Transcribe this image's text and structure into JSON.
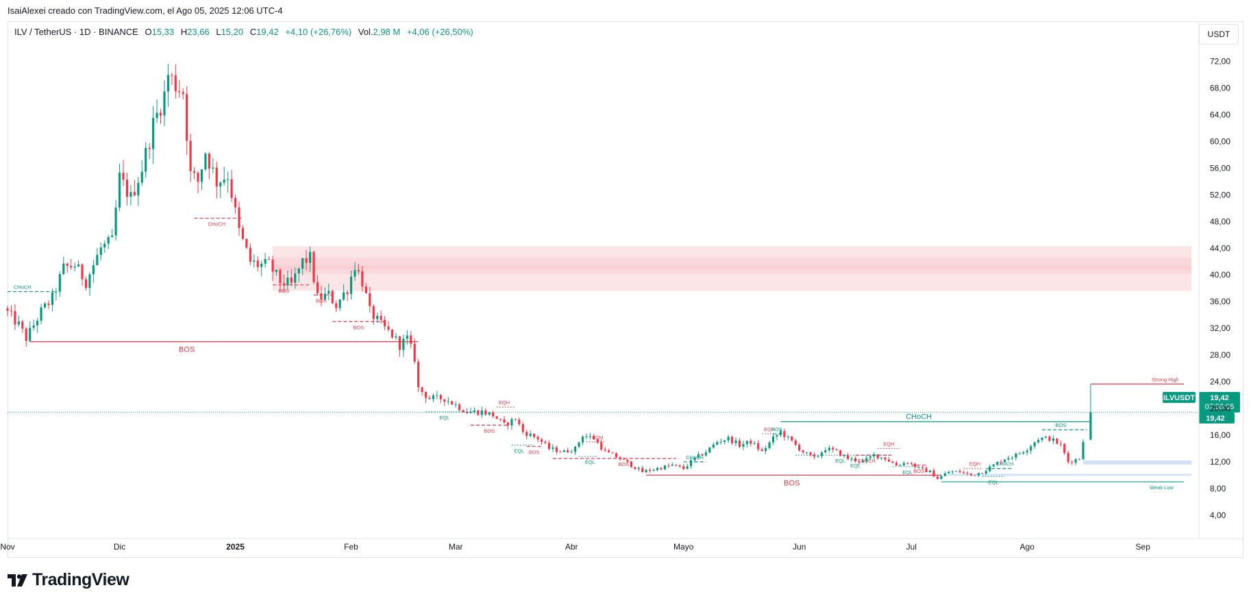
{
  "header": {
    "credit": "IsaiAlexei creado con TradingView.com, el Ago 05, 2025 12:06 UTC-4",
    "currency_button": "USDT"
  },
  "legend": {
    "symbol": "ILV / TetherUS · 1D · BINANCE",
    "o_label": "O",
    "o_value": "15,33",
    "h_label": "H",
    "h_value": "23,66",
    "l_label": "L",
    "l_value": "15,20",
    "c_label": "C",
    "c_value": "19,42",
    "change": "+4,10 (+26,76%)",
    "vol_label": "Vol.",
    "vol_value": "2,98 M",
    "vol_change": "+4,06 (+26,50%)"
  },
  "colors": {
    "up": "#089981",
    "down": "#f23645",
    "zone": "#f7c5c9",
    "demand": "#c9dcf7",
    "axis_text": "#131722",
    "grid_border": "#e0e3eb"
  },
  "footer": {
    "brand": "TradingView",
    "logo_icon": "tradingview-logo-icon"
  },
  "chart_data": {
    "type": "candlestick",
    "symbol": "ILVUSDT",
    "y_ticks": [
      "72,00",
      "68,00",
      "64,00",
      "60,00",
      "56,00",
      "52,00",
      "48,00",
      "44,00",
      "40,00",
      "36,00",
      "32,00",
      "28,00",
      "24,00",
      "20,00",
      "16,00",
      "12,00",
      "8,00",
      "4,00"
    ],
    "y_tick_values": [
      72,
      68,
      64,
      60,
      56,
      52,
      48,
      44,
      40,
      36,
      32,
      28,
      24,
      20,
      16,
      12,
      8,
      4
    ],
    "ylim": [
      0.5,
      77.8
    ],
    "x_ticks": [
      "Nov",
      "Dic",
      "2025",
      "Feb",
      "Mar",
      "Abr",
      "Mayo",
      "Jun",
      "Jul",
      "Ago",
      "Sep"
    ],
    "x_tick_dates": [
      "2024-11-01",
      "2024-12-01",
      "2025-01-01",
      "2025-02-01",
      "2025-03-01",
      "2025-04-01",
      "2025-05-01",
      "2025-06-01",
      "2025-07-01",
      "2025-08-01",
      "2025-09-01"
    ],
    "xlim": [
      "2024-11-01",
      "2025-09-16"
    ],
    "last_price": {
      "label": "ILVUSDT",
      "value": "19,42",
      "countdown": "07:53:05",
      "price": 19.42
    },
    "price_line_value": 19.42,
    "annotations": [
      {
        "text": "CHoCH",
        "color": "#089981"
      },
      {
        "text": "CHoCH",
        "color": "#f23645"
      },
      {
        "text": "BOS",
        "color": "#f23645"
      },
      {
        "text": "EQH",
        "color": "#f23645"
      },
      {
        "text": "EQL",
        "color": "#089981"
      },
      {
        "text": "Strong High",
        "color": "#f23645"
      },
      {
        "text": "Weak Low",
        "color": "#089981"
      }
    ],
    "waypoints": [
      [
        "2024-11-01",
        35.0
      ],
      [
        "2024-11-05",
        32.5
      ],
      [
        "2024-11-07",
        30.5
      ],
      [
        "2024-11-11",
        34.5
      ],
      [
        "2024-11-14",
        36.5
      ],
      [
        "2024-11-17",
        41.0
      ],
      [
        "2024-11-20",
        41.5
      ],
      [
        "2024-11-23",
        39.0
      ],
      [
        "2024-11-27",
        44.0
      ],
      [
        "2024-11-30",
        45.0
      ],
      [
        "2024-12-02",
        54.5
      ],
      [
        "2024-12-05",
        51.5
      ],
      [
        "2024-12-08",
        56.0
      ],
      [
        "2024-12-11",
        62.5
      ],
      [
        "2024-12-14",
        67.0
      ],
      [
        "2024-12-15",
        70.0
      ],
      [
        "2024-12-17",
        68.5
      ],
      [
        "2024-12-19",
        67.5
      ],
      [
        "2024-12-21",
        55.0
      ],
      [
        "2024-12-23",
        54.0
      ],
      [
        "2024-12-25",
        58.5
      ],
      [
        "2024-12-28",
        54.0
      ],
      [
        "2024-12-31",
        55.0
      ],
      [
        "2025-01-03",
        46.5
      ],
      [
        "2025-01-06",
        42.0
      ],
      [
        "2025-01-08",
        41.5
      ],
      [
        "2025-01-11",
        41.5
      ],
      [
        "2025-01-14",
        39.0
      ],
      [
        "2025-01-17",
        38.5
      ],
      [
        "2025-01-20",
        42.0
      ],
      [
        "2025-01-22",
        42.5
      ],
      [
        "2025-01-24",
        36.5
      ],
      [
        "2025-01-27",
        37.0
      ],
      [
        "2025-01-29",
        35.5
      ],
      [
        "2025-02-01",
        38.0
      ],
      [
        "2025-02-03",
        41.5
      ],
      [
        "2025-02-05",
        39.0
      ],
      [
        "2025-02-07",
        34.5
      ],
      [
        "2025-02-10",
        32.5
      ],
      [
        "2025-02-13",
        31.0
      ],
      [
        "2025-02-15",
        29.5
      ],
      [
        "2025-02-17",
        30.5
      ],
      [
        "2025-02-19",
        27.5
      ],
      [
        "2025-02-20",
        23.0
      ],
      [
        "2025-02-23",
        21.5
      ],
      [
        "2025-02-27",
        21.5
      ],
      [
        "2025-03-02",
        20.5
      ],
      [
        "2025-03-05",
        19.5
      ],
      [
        "2025-03-09",
        19.5
      ],
      [
        "2025-03-12",
        19.0
      ],
      [
        "2025-03-15",
        17.5
      ],
      [
        "2025-03-18",
        18.5
      ],
      [
        "2025-03-20",
        16.5
      ],
      [
        "2025-03-24",
        15.5
      ],
      [
        "2025-03-27",
        14.0
      ],
      [
        "2025-03-31",
        13.5
      ],
      [
        "2025-04-03",
        14.0
      ],
      [
        "2025-04-05",
        16.0
      ],
      [
        "2025-04-08",
        15.5
      ],
      [
        "2025-04-11",
        13.5
      ],
      [
        "2025-04-15",
        12.5
      ],
      [
        "2025-04-18",
        11.5
      ],
      [
        "2025-04-21",
        10.5
      ],
      [
        "2025-04-25",
        11.0
      ],
      [
        "2025-04-29",
        11.5
      ],
      [
        "2025-05-02",
        11.0
      ],
      [
        "2025-05-05",
        12.5
      ],
      [
        "2025-05-08",
        13.5
      ],
      [
        "2025-05-11",
        15.0
      ],
      [
        "2025-05-14",
        15.5
      ],
      [
        "2025-05-17",
        14.5
      ],
      [
        "2025-05-20",
        15.0
      ],
      [
        "2025-05-23",
        13.5
      ],
      [
        "2025-05-26",
        15.5
      ],
      [
        "2025-05-28",
        16.5
      ],
      [
        "2025-05-31",
        15.0
      ],
      [
        "2025-06-03",
        13.5
      ],
      [
        "2025-06-06",
        12.5
      ],
      [
        "2025-06-09",
        14.0
      ],
      [
        "2025-06-12",
        13.5
      ],
      [
        "2025-06-15",
        12.5
      ],
      [
        "2025-06-19",
        12.0
      ],
      [
        "2025-06-22",
        13.0
      ],
      [
        "2025-06-25",
        12.5
      ],
      [
        "2025-06-28",
        11.5
      ],
      [
        "2025-07-01",
        12.0
      ],
      [
        "2025-07-04",
        11.0
      ],
      [
        "2025-07-07",
        10.5
      ],
      [
        "2025-07-09",
        9.5
      ],
      [
        "2025-07-12",
        10.5
      ],
      [
        "2025-07-15",
        10.5
      ],
      [
        "2025-07-18",
        10.0
      ],
      [
        "2025-07-21",
        10.5
      ],
      [
        "2025-07-24",
        11.5
      ],
      [
        "2025-07-27",
        12.5
      ],
      [
        "2025-07-30",
        13.0
      ],
      [
        "2025-08-02",
        14.0
      ],
      [
        "2025-08-05",
        15.5
      ],
      [
        "2025-08-08",
        15.5
      ],
      [
        "2025-08-11",
        14.5
      ],
      [
        "2025-08-13",
        12.0
      ],
      [
        "2025-08-16",
        12.5
      ],
      [
        "2025-08-17",
        15.33
      ]
    ],
    "last_candle": {
      "date": "2025-08-18",
      "open": 15.33,
      "high": 23.66,
      "low": 15.2,
      "close": 19.42
    },
    "zones": [
      {
        "kind": "supply",
        "top": 44.3,
        "bottom": 37.6,
        "start": "2025-01-11",
        "end": "2025-09-14"
      },
      {
        "kind": "supply",
        "top": 42.6,
        "bottom": 40.2,
        "start": "2025-01-11",
        "end": "2025-09-14"
      },
      {
        "kind": "supply",
        "top": 41.4,
        "bottom": 40.8,
        "start": "2025-01-11",
        "end": "2025-09-14"
      },
      {
        "kind": "demand",
        "top": 12.2,
        "bottom": 11.6,
        "start": "2025-08-16",
        "end": "2025-09-14"
      },
      {
        "kind": "demand",
        "top": 10.2,
        "bottom": 9.9,
        "start": "2025-07-10",
        "end": "2025-09-14"
      }
    ],
    "levels": [
      {
        "label": "BOS",
        "color": "#f23645",
        "value": 30.0,
        "start": "2024-11-07",
        "end": "2025-02-19",
        "style": "solid",
        "labelDate": "2024-12-19",
        "labelAbove": false
      },
      {
        "label": "BOS",
        "color": "#f23645",
        "value": 10.0,
        "start": "2025-04-21",
        "end": "2025-07-09",
        "style": "solid",
        "labelDate": "2025-05-30",
        "labelAbove": false
      },
      {
        "label": "CHoCH",
        "color": "#089981",
        "value": 18.0,
        "start": "2025-05-27",
        "end": "2025-08-18",
        "style": "solid",
        "labelDate": "2025-07-03",
        "labelAbove": true
      },
      {
        "label": "Strong High",
        "color": "#f23645",
        "value": 23.66,
        "start": "2025-08-18",
        "end": "2025-09-12",
        "style": "solid",
        "labelDate": "2025-09-07",
        "labelAbove": true
      },
      {
        "label": "Weak Low",
        "color": "#089981",
        "value": 9.0,
        "start": "2025-07-09",
        "end": "2025-09-12",
        "style": "solid",
        "labelDate": "2025-09-06",
        "labelAbove": false
      },
      {
        "label": "CHoCH",
        "color": "#089981",
        "value": 37.5,
        "start": "2024-11-01",
        "end": "2024-11-14",
        "style": "dashed",
        "labelDate": "2024-11-05",
        "labelAbove": true
      },
      {
        "label": "CHoCH",
        "color": "#f23645",
        "value": 48.5,
        "start": "2024-12-21",
        "end": "2025-01-03",
        "style": "dashed",
        "labelDate": "2024-12-27",
        "labelAbove": false
      },
      {
        "label": "BOS",
        "color": "#f23645",
        "value": 38.5,
        "start": "2025-01-11",
        "end": "2025-01-21",
        "style": "dashed",
        "labelDate": "2025-01-14",
        "labelAbove": false
      },
      {
        "label": "BOS",
        "color": "#f23645",
        "value": 37.0,
        "start": "2025-01-22",
        "end": "2025-01-27",
        "style": "dashed",
        "labelDate": "2025-01-24",
        "labelAbove": false
      },
      {
        "label": "BOS",
        "color": "#f23645",
        "value": 33.0,
        "start": "2025-01-27",
        "end": "2025-02-10",
        "style": "dashed",
        "labelDate": "2025-02-03",
        "labelAbove": false
      },
      {
        "label": "EQL",
        "color": "#089981",
        "value": 19.5,
        "start": "2025-02-21",
        "end": "2025-03-06",
        "style": "dotted",
        "labelDate": "2025-02-26",
        "labelAbove": false
      },
      {
        "label": "EQH",
        "color": "#f23645",
        "value": 20.2,
        "start": "2025-03-12",
        "end": "2025-03-17",
        "style": "dotted",
        "labelDate": "2025-03-14",
        "labelAbove": true
      },
      {
        "label": "BOS",
        "color": "#f23645",
        "value": 17.5,
        "start": "2025-03-05",
        "end": "2025-03-15",
        "style": "dashed",
        "labelDate": "2025-03-10",
        "labelAbove": false
      },
      {
        "label": "BOS",
        "color": "#f23645",
        "value": 14.3,
        "start": "2025-03-20",
        "end": "2025-03-24",
        "style": "dashed",
        "labelDate": "2025-03-22",
        "labelAbove": false
      },
      {
        "label": "EQL",
        "color": "#089981",
        "value": 14.5,
        "start": "2025-03-16",
        "end": "2025-03-22",
        "style": "dotted",
        "labelDate": "2025-03-18",
        "labelAbove": false
      },
      {
        "label": "EQH",
        "color": "#f23645",
        "value": 15.0,
        "start": "2025-04-05",
        "end": "2025-04-10",
        "style": "dotted",
        "labelDate": "2025-04-08",
        "labelAbove": true
      },
      {
        "label": "EQL",
        "color": "#089981",
        "value": 12.8,
        "start": "2025-04-03",
        "end": "2025-04-08",
        "style": "dotted",
        "labelDate": "2025-04-06",
        "labelAbove": false
      },
      {
        "label": "BOS",
        "color": "#f23645",
        "value": 12.5,
        "start": "2025-03-27",
        "end": "2025-04-29",
        "style": "dashed",
        "labelDate": "2025-04-15",
        "labelAbove": false
      },
      {
        "label": "CHoCH",
        "color": "#089981",
        "value": 12.0,
        "start": "2025-05-01",
        "end": "2025-05-07",
        "style": "dashed",
        "labelDate": "2025-05-04",
        "labelAbove": true
      },
      {
        "label": "EQH",
        "color": "#f23645",
        "value": 16.2,
        "start": "2025-05-22",
        "end": "2025-05-27",
        "style": "dotted",
        "labelDate": "2025-05-24",
        "labelAbove": true
      },
      {
        "label": "BOS",
        "color": "#089981",
        "value": 16.2,
        "start": "2025-05-25",
        "end": "2025-05-28",
        "style": "dashed",
        "labelDate": "2025-05-26",
        "labelAbove": true
      },
      {
        "label": "EQL",
        "color": "#089981",
        "value": 13.0,
        "start": "2025-05-31",
        "end": "2025-06-25",
        "style": "dotted",
        "labelDate": "2025-06-12",
        "labelAbove": false
      },
      {
        "label": "EQL",
        "color": "#089981",
        "value": 12.3,
        "start": "2025-06-14",
        "end": "2025-06-18",
        "style": "dotted",
        "labelDate": "2025-06-16",
        "labelAbove": false
      },
      {
        "label": "CHoCH",
        "color": "#f23645",
        "value": 13.0,
        "start": "2025-06-16",
        "end": "2025-06-26",
        "style": "dashed",
        "labelDate": "2025-06-19",
        "labelAbove": false
      },
      {
        "label": "EQH",
        "color": "#f23645",
        "value": 14.0,
        "start": "2025-06-22",
        "end": "2025-06-28",
        "style": "dotted",
        "labelDate": "2025-06-25",
        "labelAbove": true
      },
      {
        "label": "EQL",
        "color": "#089981",
        "value": 11.3,
        "start": "2025-06-26",
        "end": "2025-07-03",
        "style": "dotted",
        "labelDate": "2025-06-30",
        "labelAbove": false
      },
      {
        "label": "BOS",
        "color": "#f23645",
        "value": 11.5,
        "start": "2025-07-01",
        "end": "2025-07-05",
        "style": "dashed",
        "labelDate": "2025-07-03",
        "labelAbove": false
      },
      {
        "label": "EQH",
        "color": "#f23645",
        "value": 11.0,
        "start": "2025-07-15",
        "end": "2025-07-20",
        "style": "dotted",
        "labelDate": "2025-07-18",
        "labelAbove": true
      },
      {
        "label": "CHoCH",
        "color": "#089981",
        "value": 11.0,
        "start": "2025-07-21",
        "end": "2025-07-28",
        "style": "dashed",
        "labelDate": "2025-07-26",
        "labelAbove": true
      },
      {
        "label": "EQL",
        "color": "#089981",
        "value": 9.8,
        "start": "2025-07-20",
        "end": "2025-07-26",
        "style": "dotted",
        "labelDate": "2025-07-23",
        "labelAbove": false
      },
      {
        "label": "BOS",
        "color": "#089981",
        "value": 16.8,
        "start": "2025-08-05",
        "end": "2025-08-17",
        "style": "dashed",
        "labelDate": "2025-08-10",
        "labelAbove": true
      }
    ]
  }
}
